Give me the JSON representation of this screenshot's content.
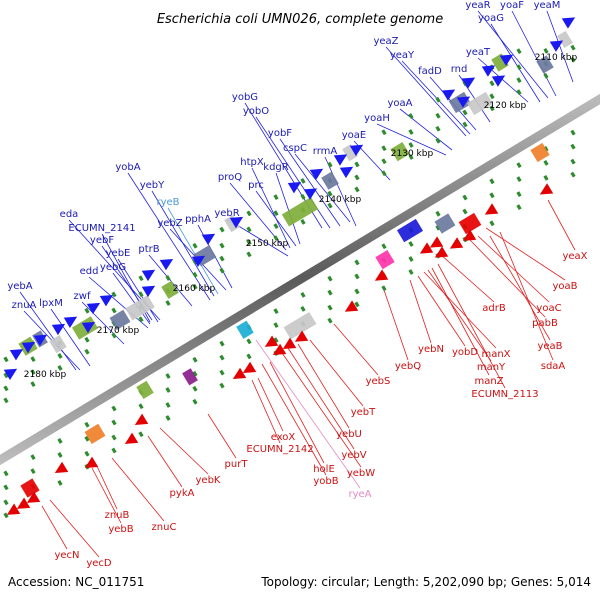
{
  "title": "Escherichia coli UMN026, complete genome",
  "footer": {
    "accession": "Accession: NC_011751",
    "summary": "Topology: circular; Length: 5,202,090 bp; Genes: 5,014"
  },
  "colors": {
    "plus_strand_label": "#1a1ab4",
    "minus_strand_label": "#cc1111",
    "rna_plus_label": "#4a9ad8",
    "rna_minus_label": "#e58ac4",
    "backbone": "#6b6b6b",
    "tick": "#2e8b2e"
  },
  "kbp_ticks": [
    "2110 kbp",
    "2120 kbp",
    "2130 kbp",
    "2140 kbp",
    "2150 kbp",
    "2160 kbp",
    "2170 kbp",
    "2180 kbp"
  ],
  "genes_plus": [
    "yeaR",
    "yoaF",
    "yeaM",
    "yoaG",
    "yeaZ",
    "yeaY",
    "fadD",
    "yeaT",
    "rnd",
    "yoaA",
    "yoaH",
    "yoaE",
    "rrmA",
    "yobG",
    "yobO",
    "yobF",
    "cspC",
    "htpX",
    "kdgR",
    "proQ",
    "prc",
    "yobA",
    "yebY",
    "ryeB",
    "yebR",
    "eda",
    "yebZ",
    "pphA",
    "ECUMN_2141",
    "yebF",
    "edd",
    "yebE",
    "ptrB",
    "yebG",
    "yebA",
    "lpxM",
    "znuA",
    "zwf"
  ],
  "genes_minus": [
    "yeaX",
    "yoaB",
    "yoaC",
    "pabB",
    "adrB",
    "yeaB",
    "sdaA",
    "yebQ",
    "yebN",
    "yobD",
    "manX",
    "manY",
    "manZ",
    "ECUMN_2113",
    "yebS",
    "yebT",
    "yebU",
    "yebV",
    "yebW",
    "exoX",
    "ECUMN_2142",
    "holE",
    "yobB",
    "ryeA",
    "purT",
    "yebK",
    "pykA",
    "znuB",
    "yebB",
    "znuC",
    "yecN",
    "yecD"
  ]
}
